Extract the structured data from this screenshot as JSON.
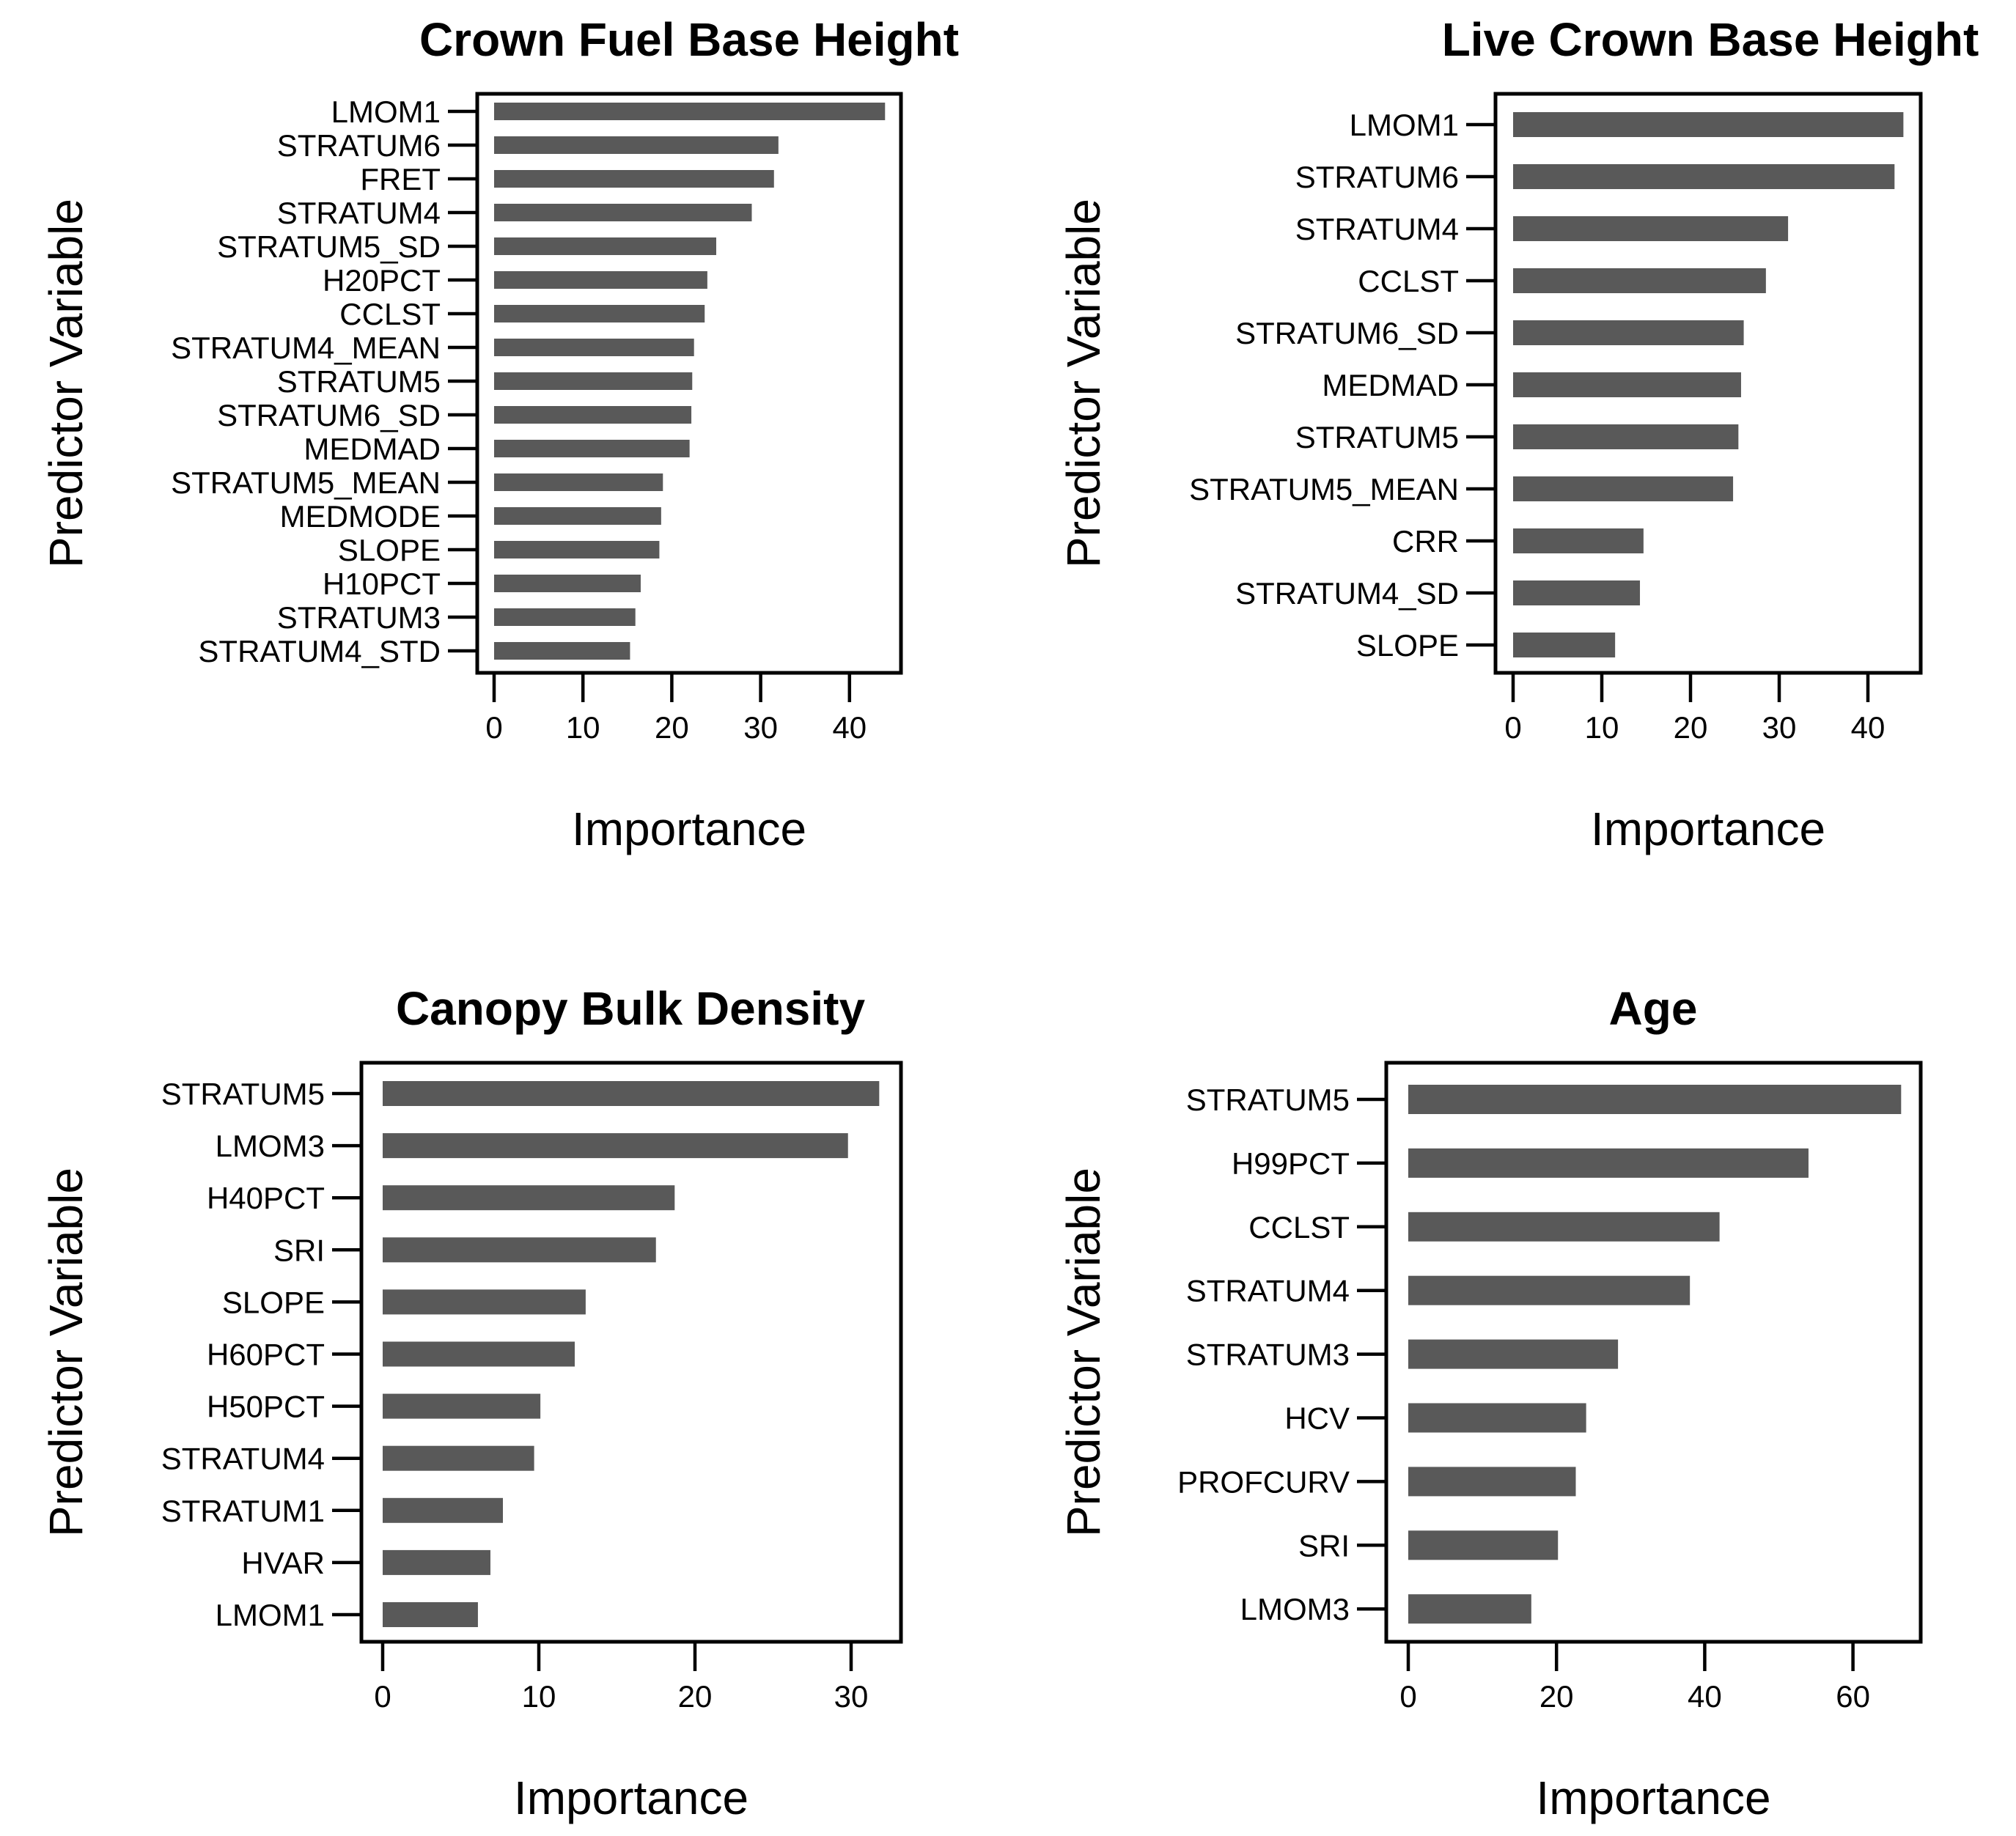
{
  "chart_data": [
    {
      "type": "bar",
      "orientation": "horizontal",
      "title": "Crown Fuel Base Height",
      "xlabel": "Importance",
      "ylabel": "Predictor Variable",
      "xlim": [
        0,
        46
      ],
      "xticks": [
        0,
        10,
        20,
        30,
        40
      ],
      "xtick_labels": [
        "0",
        "10",
        "20",
        "30",
        "40"
      ],
      "categories": [
        "LMOM1",
        "STRATUM6",
        "FRET",
        "STRATUM4",
        "STRATUM5_SD",
        "H20PCT",
        "CCLST",
        "STRATUM4_MEAN",
        "STRATUM5",
        "STRATUM6_SD",
        "MEDMAD",
        "STRATUM5_MEAN",
        "MEDMODE",
        "SLOPE",
        "H10PCT",
        "STRATUM3",
        "STRATUM4_STD"
      ],
      "values": [
        44,
        32,
        31.5,
        29,
        25,
        24,
        23.7,
        22.5,
        22.3,
        22.2,
        22,
        19,
        18.8,
        18.6,
        16.5,
        15.9,
        15.3
      ],
      "grid": false,
      "legend": "none"
    },
    {
      "type": "bar",
      "orientation": "horizontal",
      "title": "Live Crown Base Height",
      "xlabel": "Importance",
      "ylabel": "Predictor Variable",
      "xlim": [
        0,
        46
      ],
      "xticks": [
        0,
        10,
        20,
        30,
        40
      ],
      "xtick_labels": [
        "0",
        "10",
        "20",
        "30",
        "40"
      ],
      "categories": [
        "LMOM1",
        "STRATUM6",
        "STRATUM4",
        "CCLST",
        "STRATUM6_SD",
        "MEDMAD",
        "STRATUM5",
        "STRATUM5_MEAN",
        "CRR",
        "STRATUM4_SD",
        "SLOPE"
      ],
      "values": [
        44,
        43,
        31,
        28.5,
        26,
        25.7,
        25.4,
        24.8,
        14.7,
        14.3,
        11.5
      ],
      "grid": false,
      "legend": "none"
    },
    {
      "type": "bar",
      "orientation": "horizontal",
      "title": "Canopy Bulk Density",
      "xlabel": "Importance",
      "ylabel": "Predictor Variable",
      "xlim": [
        0,
        33
      ],
      "xticks": [
        0,
        10,
        20,
        30
      ],
      "xtick_labels": [
        "0",
        "10",
        "20",
        "30"
      ],
      "categories": [
        "STRATUM5",
        "LMOM3",
        "H40PCT",
        "SRI",
        "SLOPE",
        "H60PCT",
        "H50PCT",
        "STRATUM4",
        "STRATUM1",
        "HVAR",
        "LMOM1"
      ],
      "values": [
        31.8,
        29.8,
        18.7,
        17.5,
        13,
        12.3,
        10.1,
        9.7,
        7.7,
        6.9,
        6.1
      ],
      "grid": false,
      "legend": "none"
    },
    {
      "type": "bar",
      "orientation": "horizontal",
      "title": "Age",
      "xlabel": "Importance",
      "ylabel": "Predictor Variable",
      "xlim": [
        0,
        69
      ],
      "xticks": [
        0,
        20,
        40,
        60
      ],
      "xtick_labels": [
        "0",
        "20",
        "40",
        "60"
      ],
      "categories": [
        "STRATUM5",
        "H99PCT",
        "CCLST",
        "STRATUM4",
        "STRATUM3",
        "HCV",
        "PROFCURV",
        "SRI",
        "LMOM3"
      ],
      "values": [
        66.5,
        54,
        42,
        38,
        28.3,
        24,
        22.6,
        20.2,
        16.6
      ],
      "grid": false,
      "legend": "none"
    }
  ]
}
